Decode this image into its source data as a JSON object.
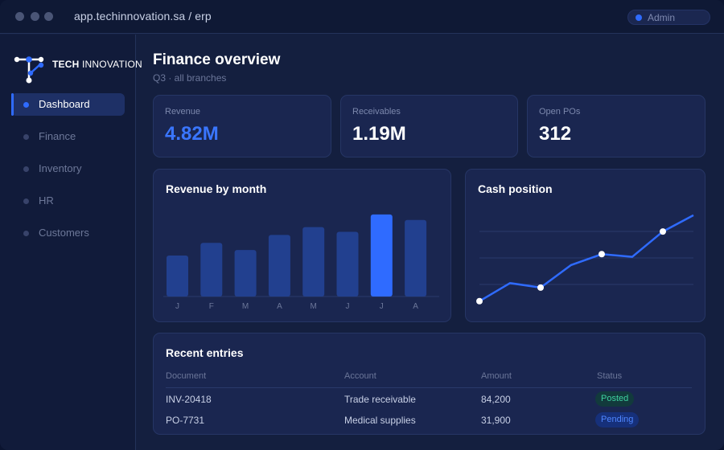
{
  "window": {
    "url": "app.techinnovation.sa / erp",
    "user_badge": "Admin"
  },
  "brand": {
    "name_bold": "TECH",
    "name_light": "INNOVATION",
    "accent": "#2f6bff"
  },
  "sidebar": {
    "items": [
      {
        "label": "Dashboard",
        "active": true
      },
      {
        "label": "Finance",
        "active": false
      },
      {
        "label": "Inventory",
        "active": false
      },
      {
        "label": "HR",
        "active": false
      },
      {
        "label": "Customers",
        "active": false
      }
    ]
  },
  "page": {
    "title": "Finance overview",
    "subtitle": "Q3 · all branches"
  },
  "kpis": [
    {
      "label": "Revenue",
      "value": "4.82M"
    },
    {
      "label": "Receivables",
      "value": "1.19M"
    },
    {
      "label": "Open POs",
      "value": "312"
    }
  ],
  "chart_data": [
    {
      "type": "bar",
      "title": "Revenue by month",
      "categories": [
        "J",
        "F",
        "M",
        "A",
        "M",
        "J",
        "J",
        "A"
      ],
      "values": [
        52,
        68,
        59,
        78,
        88,
        82,
        104,
        97
      ],
      "highlight_index": 6,
      "ylim": [
        0,
        110
      ],
      "grid": false,
      "colors": {
        "bar": "#22408f",
        "highlight": "#2f6bff"
      }
    },
    {
      "type": "line",
      "title": "Cash position",
      "x": [
        0,
        1,
        2,
        3,
        4,
        5,
        6,
        7
      ],
      "values": [
        10,
        30,
        25,
        50,
        62,
        59,
        87,
        105
      ],
      "marked_points": [
        0,
        2,
        4,
        6
      ],
      "ylim": [
        0,
        120
      ],
      "grid": true,
      "colors": {
        "line": "#2f6bff",
        "marker": "#ffffff"
      }
    }
  ],
  "recent": {
    "title": "Recent entries",
    "columns": [
      "Document",
      "Account",
      "Amount",
      "Status"
    ],
    "rows": [
      {
        "document": "INV-20418",
        "account": "Trade receivable",
        "amount": "84,200",
        "status": "Posted",
        "status_kind": "posted"
      },
      {
        "document": "PO-7731",
        "account": "Medical supplies",
        "amount": "31,900",
        "status": "Pending",
        "status_kind": "pending"
      }
    ]
  }
}
